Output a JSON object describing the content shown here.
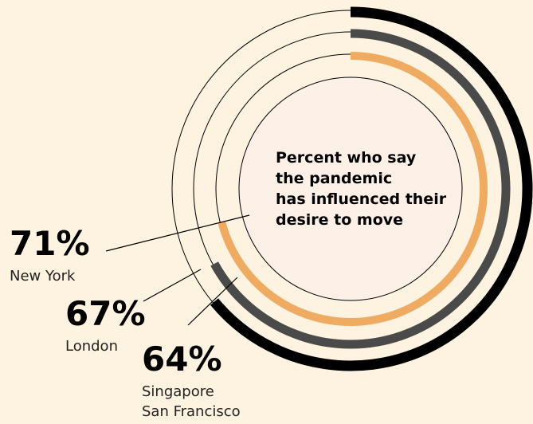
{
  "chart_data": {
    "type": "radial-bar",
    "title": [
      "Percent who say",
      "the pandemic",
      "has influenced their",
      "desire to move"
    ],
    "series": [
      {
        "name": [
          "New York"
        ],
        "values": [
          71
        ],
        "value_labels": [
          "71%"
        ],
        "color": "#efab62"
      },
      {
        "name": [
          "London"
        ],
        "values": [
          67
        ],
        "value_labels": [
          "67%"
        ],
        "color": "#4a4a4a"
      },
      {
        "name": [
          "Singapore",
          "San Francisco"
        ],
        "values": [
          64
        ],
        "value_labels": [
          "64%"
        ],
        "color": "#000000"
      }
    ],
    "ylim": [
      0,
      100
    ]
  }
}
